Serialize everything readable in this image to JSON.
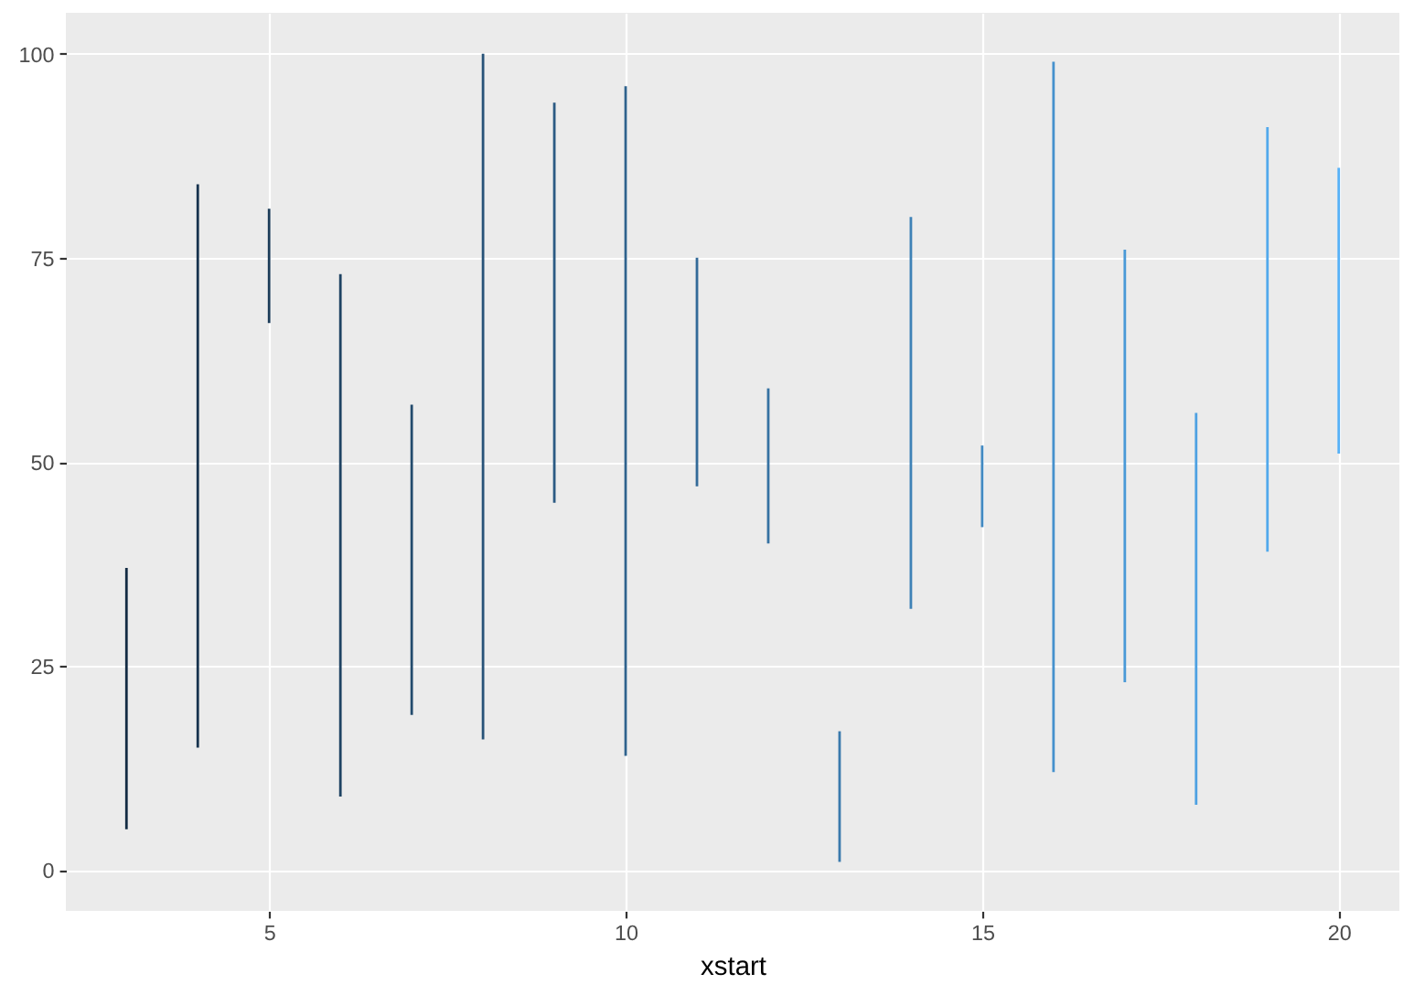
{
  "chart_data": {
    "type": "bar",
    "x": [
      3,
      4,
      5,
      6,
      7,
      8,
      9,
      10,
      11,
      12,
      13,
      14,
      15,
      16,
      17,
      18,
      19,
      20
    ],
    "base": [
      5,
      15,
      67,
      9,
      19,
      16,
      45,
      14,
      47,
      40,
      1,
      32,
      42,
      12,
      23,
      8,
      39,
      51
    ],
    "values": [
      32,
      69,
      14,
      64,
      38,
      84,
      49,
      82,
      28,
      19,
      16,
      48,
      10,
      87,
      53,
      48,
      52,
      35
    ],
    "colors": [
      "#132b43",
      "#17334e",
      "#1b3b58",
      "#1f4363",
      "#234b6d",
      "#275278",
      "#2b5a83",
      "#2f628d",
      "#336a98",
      "#3672a2",
      "#3a7aad",
      "#3e82b7",
      "#428ac2",
      "#4691cd",
      "#4a99d7",
      "#4ea1e2",
      "#52a9ec",
      "#56b1f7"
    ],
    "xlabel": "xstart",
    "xlim": [
      2.15,
      20.85
    ],
    "xticks": [
      5,
      10,
      15,
      20
    ],
    "ylim": [
      -5,
      105
    ],
    "yticks": [
      0,
      25,
      50,
      75,
      100
    ],
    "grid": true
  }
}
